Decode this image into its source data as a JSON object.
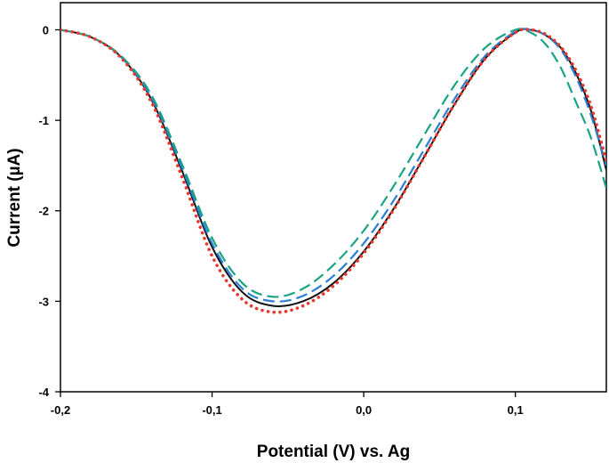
{
  "chart_data": {
    "type": "line",
    "title": "",
    "xlabel": "Potential (V) vs. Ag",
    "ylabel": "Current (µA)",
    "xlim": [
      -0.2,
      0.16
    ],
    "ylim": [
      -4,
      0.3
    ],
    "x_ticks": [
      -0.2,
      -0.1,
      0.0,
      0.1
    ],
    "x_tick_labels": [
      "-0,2",
      "-0,1",
      "0,0",
      "0,1"
    ],
    "y_ticks": [
      0,
      -1,
      -2,
      -3,
      -4
    ],
    "y_tick_labels": [
      "0",
      "-1",
      "-2",
      "-3",
      "-4"
    ],
    "grid": false,
    "legend": "none",
    "series": [
      {
        "name": "solid-black",
        "color": "#111111",
        "dash": "solid",
        "x": [
          -0.2,
          -0.18,
          -0.16,
          -0.14,
          -0.12,
          -0.1,
          -0.08,
          -0.06,
          -0.04,
          -0.02,
          0.0,
          0.02,
          0.04,
          0.06,
          0.08,
          0.1,
          0.11,
          0.12,
          0.13,
          0.14,
          0.15,
          0.16
        ],
        "y": [
          0,
          -0.08,
          -0.3,
          -0.77,
          -1.55,
          -2.4,
          -2.9,
          -3.05,
          -3.0,
          -2.8,
          -2.45,
          -1.97,
          -1.4,
          -0.82,
          -0.32,
          -0.03,
          0.0,
          -0.06,
          -0.2,
          -0.48,
          -0.9,
          -1.55
        ]
      },
      {
        "name": "blue-dashed",
        "color": "#2a7fd4",
        "dash": "long-dash",
        "x": [
          -0.2,
          -0.18,
          -0.16,
          -0.14,
          -0.12,
          -0.1,
          -0.08,
          -0.06,
          -0.04,
          -0.02,
          0.0,
          0.02,
          0.04,
          0.06,
          0.08,
          0.1,
          0.11,
          0.12,
          0.13,
          0.14,
          0.15,
          0.16
        ],
        "y": [
          0,
          -0.08,
          -0.3,
          -0.75,
          -1.52,
          -2.36,
          -2.86,
          -3.0,
          -2.94,
          -2.72,
          -2.36,
          -1.88,
          -1.32,
          -0.76,
          -0.29,
          -0.02,
          0.0,
          -0.06,
          -0.22,
          -0.52,
          -0.95,
          -1.5
        ]
      },
      {
        "name": "green-dashed",
        "color": "#1aa383",
        "dash": "long-dash",
        "x": [
          -0.2,
          -0.18,
          -0.16,
          -0.14,
          -0.12,
          -0.1,
          -0.08,
          -0.06,
          -0.04,
          -0.02,
          0.0,
          0.02,
          0.04,
          0.06,
          0.08,
          0.1,
          0.11,
          0.12,
          0.13,
          0.14,
          0.15,
          0.16
        ],
        "y": [
          0,
          -0.08,
          -0.29,
          -0.72,
          -1.48,
          -2.3,
          -2.8,
          -2.95,
          -2.86,
          -2.6,
          -2.22,
          -1.72,
          -1.16,
          -0.61,
          -0.2,
          0.0,
          -0.03,
          -0.16,
          -0.42,
          -0.8,
          -1.2,
          -1.75
        ]
      },
      {
        "name": "red-dotted",
        "color": "#e8382e",
        "dash": "dotted",
        "x": [
          -0.2,
          -0.18,
          -0.16,
          -0.14,
          -0.12,
          -0.1,
          -0.08,
          -0.06,
          -0.04,
          -0.02,
          0.0,
          0.02,
          0.04,
          0.06,
          0.08,
          0.1,
          0.11,
          0.12,
          0.13,
          0.14,
          0.15,
          0.16
        ],
        "y": [
          0,
          -0.08,
          -0.31,
          -0.8,
          -1.62,
          -2.5,
          -2.98,
          -3.12,
          -3.05,
          -2.83,
          -2.47,
          -1.98,
          -1.4,
          -0.82,
          -0.32,
          -0.03,
          0.0,
          -0.05,
          -0.19,
          -0.45,
          -0.85,
          -1.45
        ]
      }
    ]
  }
}
